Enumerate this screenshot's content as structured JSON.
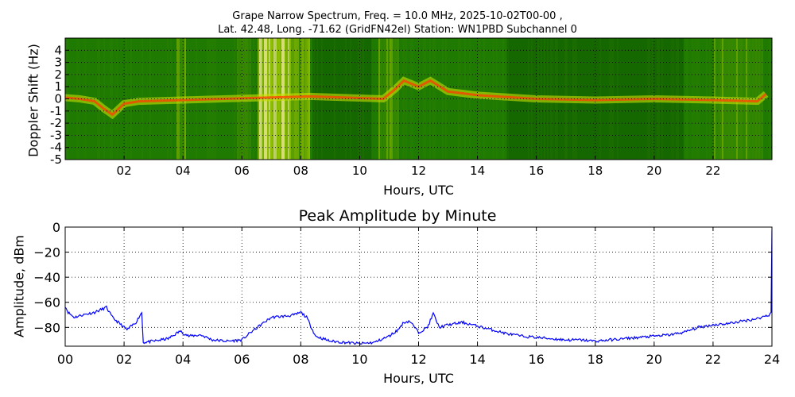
{
  "chart_data": [
    {
      "type": "heatmap",
      "title_line1": "Grape Narrow Spectrum, Freq. = 10.0 MHz, 2025-10-02T00-00 ,",
      "title_line2": "Lat.  42.48, Long. -71.62 (GridFN42el) Station: WN1PBD Subchannel 0",
      "xlabel": "Hours, UTC",
      "ylabel": "Doppler Shift (Hz)",
      "xlim": [
        0,
        24
      ],
      "ylim": [
        -5,
        5
      ],
      "xticks": [
        2,
        4,
        6,
        8,
        10,
        12,
        14,
        16,
        18,
        20,
        22
      ],
      "xtick_labels": [
        "02",
        "04",
        "06",
        "08",
        "10",
        "12",
        "14",
        "16",
        "18",
        "20",
        "22"
      ],
      "yticks": [
        4,
        3,
        2,
        1,
        0,
        -1,
        -2,
        -3,
        -4,
        -5
      ],
      "ytick_labels": [
        "4",
        "3",
        "2",
        "1",
        "0",
        "-1",
        "-2",
        "-3",
        "-4",
        "-5"
      ],
      "grid": true,
      "colors": {
        "background": "#1e7a00",
        "dark": "#0e5a00",
        "bright": "#c8e000",
        "peak": "#f5f08a",
        "carrier": "#ff3c00"
      },
      "bright_bands": [
        {
          "start": 3.75,
          "end": 4.05,
          "intensity": 0.4
        },
        {
          "start": 5.8,
          "end": 6.3,
          "intensity": 0.3
        },
        {
          "start": 6.5,
          "end": 7.6,
          "intensity": 0.85
        },
        {
          "start": 7.6,
          "end": 8.3,
          "intensity": 0.55
        },
        {
          "start": 10.6,
          "end": 11.3,
          "intensity": 0.35
        },
        {
          "start": 22.0,
          "end": 23.7,
          "intensity": 0.35
        }
      ],
      "dark_bands": [
        {
          "start": 8.4,
          "end": 10.4
        },
        {
          "start": 15.0,
          "end": 21.0
        }
      ],
      "trace": {
        "hours": [
          0,
          0.5,
          1.0,
          1.3,
          1.6,
          2.0,
          2.5,
          8.3,
          10.8,
          11.2,
          11.5,
          12.0,
          12.4,
          13.0,
          14.0,
          16.0,
          18.0,
          20.0,
          22.0,
          23.5,
          23.8
        ],
        "doppler": [
          0.1,
          0.0,
          -0.2,
          -0.8,
          -1.3,
          -0.4,
          -0.2,
          0.2,
          0.0,
          0.8,
          1.5,
          1.0,
          1.5,
          0.6,
          0.3,
          0.0,
          -0.1,
          0.0,
          -0.1,
          -0.2,
          0.4
        ]
      }
    },
    {
      "type": "line",
      "title": "Peak Amplitude by Minute",
      "xlabel": "Hours, UTC",
      "ylabel": "Amplitude, dBm",
      "xlim": [
        0,
        24
      ],
      "ylim": [
        -95,
        0
      ],
      "xticks": [
        0,
        2,
        4,
        6,
        8,
        10,
        12,
        14,
        16,
        18,
        20,
        22,
        24
      ],
      "xtick_labels": [
        "00",
        "02",
        "04",
        "06",
        "08",
        "10",
        "12",
        "14",
        "16",
        "18",
        "20",
        "22",
        "24"
      ],
      "yticks": [
        0,
        -20,
        -40,
        -60,
        -80
      ],
      "ytick_labels": [
        "0",
        "−20",
        "−40",
        "−60",
        "−80"
      ],
      "grid": true,
      "line_color": "#0000ff",
      "series": [
        {
          "name": "Peak Amplitude",
          "x": [
            0,
            0.1,
            0.3,
            0.6,
            1.0,
            1.4,
            1.6,
            1.9,
            2.1,
            2.4,
            2.6,
            2.65,
            3.0,
            3.5,
            3.9,
            4.2,
            4.6,
            5.0,
            5.5,
            6.0,
            6.3,
            6.7,
            7.0,
            7.5,
            7.8,
            8.0,
            8.2,
            8.5,
            9.0,
            9.5,
            10.0,
            10.5,
            11.0,
            11.3,
            11.5,
            11.7,
            12.0,
            12.3,
            12.5,
            12.7,
            13.0,
            13.5,
            14.0,
            14.5,
            15.0,
            15.5,
            16.0,
            16.5,
            17.0,
            17.5,
            18.0,
            18.5,
            19.0,
            19.5,
            20.0,
            20.5,
            21.0,
            21.5,
            22.0,
            22.5,
            23.0,
            23.5,
            23.9,
            23.97,
            24.0
          ],
          "y": [
            -63,
            -68,
            -72,
            -70,
            -68,
            -64,
            -72,
            -78,
            -82,
            -76,
            -68,
            -92,
            -91,
            -89,
            -83,
            -87,
            -86,
            -90,
            -91,
            -90,
            -84,
            -77,
            -72,
            -71,
            -70,
            -68,
            -72,
            -87,
            -91,
            -92,
            -93,
            -92,
            -87,
            -82,
            -76,
            -75,
            -84,
            -80,
            -69,
            -80,
            -78,
            -76,
            -79,
            -82,
            -85,
            -87,
            -88,
            -89,
            -90,
            -90,
            -91,
            -90,
            -89,
            -88,
            -87,
            -86,
            -84,
            -80,
            -78,
            -77,
            -75,
            -73,
            -70,
            -68,
            -2
          ]
        }
      ]
    }
  ]
}
